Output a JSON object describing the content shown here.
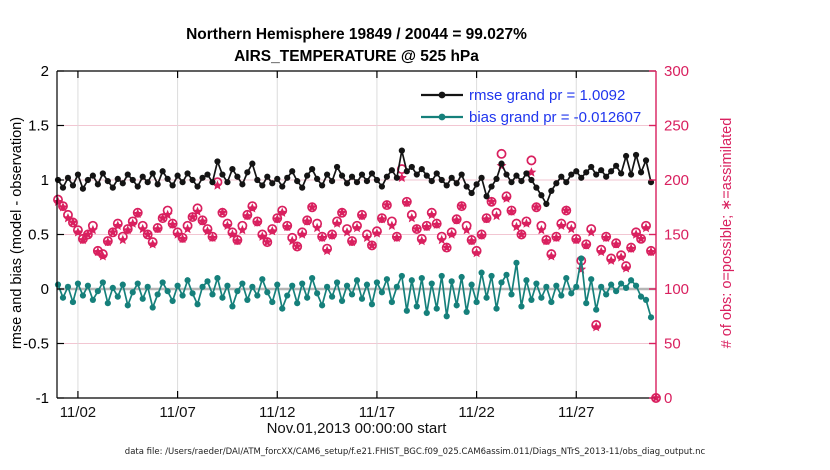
{
  "chart_data": {
    "type": "line+scatter",
    "title": "Northern Hemisphere 19849 / 20044 = 99.027%",
    "subtitle": "AIRS_TEMPERATURE @ 525 hPa",
    "xlabel": "Nov.01,2013 00:00:00 start",
    "footer": "data file: /Users/raeder/DAI/ATM_forcXX/CAM6_setup/f.e21.FHIST_BGC.f09_025.CAM6assim.011/Diags_NTrS_2013-11/obs_diag_output.nc",
    "grid": "on",
    "legend_position": "inside-top-right",
    "legend_text_color": "#1f35ee",
    "axes": {
      "x": {
        "start_day": 1.0,
        "step_days": 0.25,
        "n_points": 121,
        "range_days": [
          0.95,
          31.0
        ],
        "tick_days": [
          2,
          7,
          12,
          17,
          22,
          27
        ],
        "tick_labels": [
          "11/02",
          "11/07",
          "11/12",
          "11/17",
          "11/22",
          "11/27"
        ]
      },
      "y_left": {
        "label": "rmse and bias (model - observation)",
        "min": -1,
        "max": 2,
        "ticks": [
          2,
          1.5,
          1,
          0.5,
          0,
          -0.5,
          -1
        ],
        "tick_labels": [
          "2",
          "1.5",
          "1",
          "0.5",
          "0",
          "-0.5",
          "-1"
        ],
        "color": "#000000"
      },
      "y_right": {
        "label": "# of obs: o=possible; ∗=assimilated",
        "min": 0,
        "max": 300,
        "ticks": [
          300,
          250,
          200,
          150,
          100,
          50,
          0
        ],
        "tick_labels": [
          "300",
          "250",
          "200",
          "150",
          "100",
          "50",
          "0"
        ],
        "color": "#d9205f"
      }
    },
    "styles": {
      "zero_line_color": "#b5b5b5",
      "grid_v_color": "#dcdcdc",
      "grid_h_color": "#f2c6d2",
      "spine_color": "#000000"
    },
    "series": [
      {
        "name": "rmse",
        "legend_label": "rmse grand pr = 1.0092",
        "grand_value": 1.0092,
        "type": "line",
        "marker": "dot",
        "color": "#141414",
        "axis": "left",
        "values": [
          1.0,
          0.93,
          1.02,
          0.95,
          1.05,
          0.92,
          1.0,
          1.04,
          0.96,
          1.06,
          0.99,
          0.93,
          1.01,
          0.97,
          1.05,
          1.0,
          0.94,
          1.03,
          0.98,
          1.06,
          0.96,
          1.08,
          1.01,
          0.95,
          1.04,
          0.98,
          1.06,
          1.0,
          0.94,
          1.02,
          1.05,
          0.98,
          1.17,
          1.05,
          0.98,
          1.1,
          1.03,
          0.96,
          1.07,
          1.15,
          1.0,
          0.95,
          1.03,
          0.97,
          1.01,
          0.94,
          1.02,
          1.08,
          0.99,
          0.93,
          1.04,
          1.1,
          1.01,
          0.95,
          1.05,
          0.99,
          1.12,
          1.04,
          0.97,
          1.03,
          0.98,
          1.05,
          0.99,
          1.06,
          1.0,
          0.94,
          1.03,
          1.09,
          1.02,
          1.27,
          1.08,
          1.12,
          1.05,
          1.1,
          1.04,
          0.99,
          1.06,
          1.0,
          0.95,
          1.02,
          0.97,
          1.05,
          0.94,
          0.88,
          0.96,
          1.02,
          0.85,
          0.94,
          1.01,
          1.15,
          1.05,
          0.98,
          1.04,
          0.99,
          1.06,
          1.0,
          0.93,
          0.86,
          0.78,
          0.9,
          0.97,
          1.03,
          0.98,
          1.05,
          1.08,
          1.02,
          1.07,
          1.12,
          1.05,
          1.09,
          1.03,
          1.08,
          1.13,
          1.06,
          1.22,
          1.05,
          1.23,
          1.07,
          1.18,
          0.98
        ]
      },
      {
        "name": "bias",
        "legend_label": "bias grand pr = -0.012607",
        "grand_value": -0.012607,
        "type": "line",
        "marker": "dot",
        "color": "#15807b",
        "axis": "left",
        "values": [
          0.04,
          -0.08,
          0.02,
          -0.12,
          0.05,
          -0.06,
          0.03,
          -0.1,
          -0.02,
          0.06,
          -0.13,
          0.01,
          -0.07,
          0.04,
          -0.15,
          -0.03,
          0.05,
          -0.09,
          0.02,
          -0.17,
          -0.05,
          0.06,
          -0.02,
          -0.11,
          0.03,
          -0.06,
          0.08,
          -0.04,
          -0.14,
          0.02,
          0.07,
          -0.05,
          0.1,
          -0.08,
          0.03,
          -0.16,
          -0.02,
          0.05,
          -0.1,
          0.02,
          -0.06,
          0.09,
          -0.03,
          -0.12,
          0.04,
          -0.18,
          -0.06,
          0.03,
          -0.13,
          0.05,
          -0.08,
          0.1,
          -0.04,
          -0.15,
          0.02,
          -0.07,
          0.06,
          -0.11,
          0.03,
          -0.05,
          0.08,
          -0.09,
          0.04,
          -0.14,
          0.06,
          -0.03,
          0.09,
          -0.12,
          0.02,
          0.12,
          -0.2,
          0.08,
          -0.16,
          0.1,
          -0.22,
          0.05,
          -0.18,
          0.12,
          -0.25,
          0.07,
          -0.15,
          0.11,
          -0.21,
          0.04,
          -0.12,
          0.15,
          -0.08,
          0.12,
          -0.18,
          0.06,
          0.13,
          -0.05,
          0.24,
          -0.16,
          0.08,
          -0.1,
          0.05,
          -0.08,
          0.02,
          -0.12,
          0.03,
          -0.06,
          0.1,
          -0.04,
          0.02,
          0.28,
          -0.13,
          0.09,
          -0.19,
          0.02,
          -0.05,
          0.04,
          -0.02,
          0.05,
          0.01,
          0.08,
          0.03,
          -0.07,
          -0.1,
          -0.26
        ]
      },
      {
        "name": "possible-obs",
        "legend_label": "o=possible",
        "type": "scatter",
        "marker": "circle",
        "color": "#d9205f",
        "axis": "right",
        "values": [
          182,
          176,
          168,
          161,
          154,
          146,
          150,
          158,
          135,
          132,
          144,
          152,
          160,
          148,
          155,
          162,
          170,
          158,
          150,
          143,
          156,
          165,
          172,
          160,
          152,
          147,
          158,
          166,
          174,
          163,
          155,
          148,
          198,
          170,
          160,
          152,
          145,
          158,
          168,
          176,
          162,
          150,
          143,
          155,
          165,
          172,
          158,
          147,
          139,
          152,
          163,
          175,
          160,
          148,
          137,
          150,
          162,
          170,
          155,
          144,
          158,
          168,
          150,
          140,
          153,
          165,
          177,
          162,
          148,
          210,
          180,
          168,
          155,
          146,
          158,
          170,
          160,
          148,
          138,
          152,
          164,
          176,
          158,
          145,
          135,
          150,
          165,
          180,
          170,
          224,
          185,
          172,
          160,
          150,
          162,
          218,
          175,
          158,
          145,
          132,
          148,
          160,
          172,
          158,
          146,
          126,
          141,
          155,
          67,
          136,
          148,
          128,
          142,
          131,
          121,
          138,
          152,
          146,
          158,
          135,
          0
        ]
      },
      {
        "name": "assimilated-obs",
        "legend_label": "∗=assimilated",
        "type": "scatter",
        "marker": "star",
        "color": "#d9205f",
        "axis": "right",
        "values": [
          180,
          175,
          165,
          161,
          152,
          145,
          150,
          154,
          134,
          130,
          143,
          152,
          158,
          145,
          154,
          160,
          169,
          155,
          150,
          141,
          155,
          165,
          168,
          159,
          150,
          146,
          155,
          166,
          171,
          162,
          153,
          147,
          195,
          170,
          158,
          150,
          144,
          154,
          167,
          174,
          161,
          148,
          143,
          153,
          164,
          170,
          157,
          144,
          139,
          150,
          162,
          175,
          156,
          147,
          135,
          149,
          160,
          170,
          152,
          143,
          156,
          167,
          147,
          140,
          151,
          164,
          177,
          158,
          147,
          202,
          179,
          165,
          155,
          144,
          157,
          168,
          159,
          145,
          138,
          150,
          163,
          176,
          154,
          144,
          133,
          149,
          164,
          180,
          167,
          213,
          183,
          171,
          157,
          150,
          160,
          207,
          175,
          154,
          144,
          130,
          147,
          158,
          172,
          155,
          145,
          118,
          140,
          152,
          65,
          134,
          147,
          126,
          141,
          129,
          119,
          137,
          150,
          146,
          156,
          134,
          0
        ]
      }
    ]
  }
}
